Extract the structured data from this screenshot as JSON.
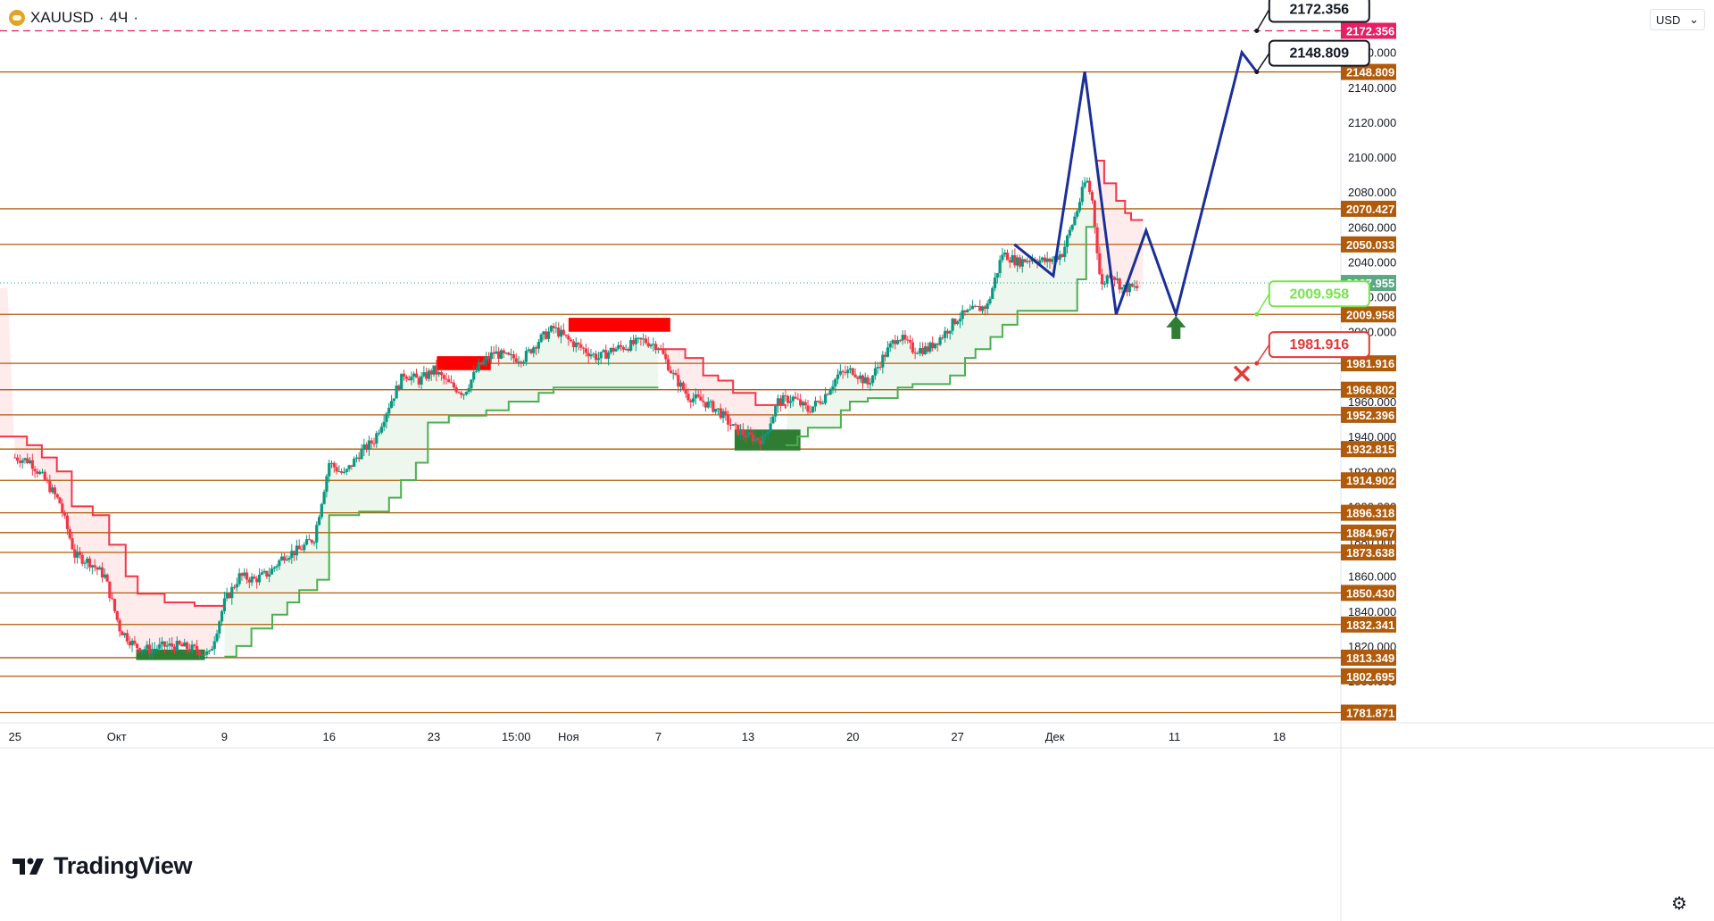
{
  "header": {
    "symbol": "XAUUSD",
    "separator": "·",
    "interval": "4Ч",
    "dot": "·"
  },
  "currency": {
    "label": "USD",
    "chevron": "⌄"
  },
  "brand": {
    "name": "TradingView"
  },
  "colors": {
    "level": "#b05a0a",
    "level_label_bg": "#b05a0a",
    "red_level": "#e91e63",
    "candle_up": "#089981",
    "candle_dn": "#f23645",
    "st_up": "#4caf50",
    "st_dn": "#f23645",
    "projection": "#1a2f9a",
    "support_box": "#2e7d32",
    "resist_box": "#ff0000"
  },
  "chart_data": {
    "type": "candlestick",
    "symbol": "XAUUSD",
    "timeframe": "4H",
    "ylim": [
      1776,
      2190
    ],
    "x_range_days": [
      -1.0,
      88.5
    ],
    "y_ticks": [
      "1800.000",
      "1820.000",
      "1840.000",
      "1860.000",
      "1880.000",
      "1900.000",
      "1920.000",
      "1940.000",
      "1960.000",
      "1980.000",
      "2000.000",
      "2020.000",
      "2040.000",
      "2060.000",
      "2080.000",
      "2100.000",
      "2120.000",
      "2140.000",
      "2160.000",
      "2180.000"
    ],
    "x_ticks": [
      {
        "label": "25",
        "day": 0
      },
      {
        "label": "Окт",
        "day": 6.8
      },
      {
        "label": "9",
        "day": 14
      },
      {
        "label": "16",
        "day": 21
      },
      {
        "label": "23",
        "day": 28
      },
      {
        "label": "15:00",
        "day": 33.5
      },
      {
        "label": "Ноя",
        "day": 37
      },
      {
        "label": "7",
        "day": 43
      },
      {
        "label": "13",
        "day": 49
      },
      {
        "label": "20",
        "day": 56
      },
      {
        "label": "27",
        "day": 63
      },
      {
        "label": "Дек",
        "day": 69.5
      },
      {
        "label": "11",
        "day": 77.5
      },
      {
        "label": "18",
        "day": 84.5
      }
    ],
    "levels": [
      "2172.356",
      "2148.809",
      "2070.427",
      "2050.033",
      "2027.955",
      "2009.958",
      "1981.916",
      "1966.802",
      "1952.396",
      "1932.815",
      "1914.902",
      "1896.318",
      "1884.967",
      "1873.638",
      "1850.430",
      "1832.341",
      "1813.349",
      "1802.695",
      "1781.871"
    ],
    "last_price": "2027.955",
    "close_path": [
      [
        0,
        1928
      ],
      [
        1,
        1926
      ],
      [
        2,
        1915
      ],
      [
        3,
        1902
      ],
      [
        4,
        1872
      ],
      [
        5,
        1868
      ],
      [
        6,
        1860
      ],
      [
        7,
        1830
      ],
      [
        8,
        1820
      ],
      [
        9,
        1818
      ],
      [
        10,
        1820
      ],
      [
        11,
        1820
      ],
      [
        12,
        1818
      ],
      [
        13,
        1815
      ],
      [
        14,
        1845
      ],
      [
        15,
        1860
      ],
      [
        16,
        1858
      ],
      [
        17,
        1862
      ],
      [
        18,
        1872
      ],
      [
        19,
        1875
      ],
      [
        20,
        1882
      ],
      [
        21,
        1925
      ],
      [
        22,
        1918
      ],
      [
        23,
        1930
      ],
      [
        24,
        1938
      ],
      [
        25,
        1958
      ],
      [
        26,
        1976
      ],
      [
        27,
        1972
      ],
      [
        28,
        1978
      ],
      [
        29,
        1970
      ],
      [
        30,
        1965
      ],
      [
        31,
        1980
      ],
      [
        32,
        1988
      ],
      [
        33,
        1985
      ],
      [
        34,
        1985
      ],
      [
        35,
        1995
      ],
      [
        36,
        2002
      ],
      [
        37,
        1995
      ],
      [
        38,
        1990
      ],
      [
        39,
        1985
      ],
      [
        40,
        1990
      ],
      [
        41,
        1992
      ],
      [
        42,
        1995
      ],
      [
        43,
        1992
      ],
      [
        44,
        1975
      ],
      [
        45,
        1963
      ],
      [
        46,
        1960
      ],
      [
        47,
        1955
      ],
      [
        48,
        1945
      ],
      [
        49,
        1940
      ],
      [
        50,
        1938
      ],
      [
        51,
        1960
      ],
      [
        52,
        1962
      ],
      [
        53,
        1955
      ],
      [
        54,
        1962
      ],
      [
        55,
        1975
      ],
      [
        56,
        1978
      ],
      [
        57,
        1970
      ],
      [
        58,
        1985
      ],
      [
        59,
        1998
      ],
      [
        60,
        1990
      ],
      [
        61,
        1990
      ],
      [
        62,
        1998
      ],
      [
        63,
        2008
      ],
      [
        64,
        2012
      ],
      [
        65,
        2015
      ],
      [
        66,
        2045
      ],
      [
        67,
        2040
      ],
      [
        68,
        2042
      ],
      [
        69,
        2040
      ],
      [
        70,
        2045
      ],
      [
        71,
        2070
      ],
      [
        71.6,
        2088
      ],
      [
        72.0,
        2075
      ],
      [
        72.6,
        2025
      ],
      [
        73.2,
        2035
      ],
      [
        74.0,
        2025
      ],
      [
        75.0,
        2025
      ]
    ],
    "supertrend": [
      {
        "trend": "down",
        "points": [
          [
            -1,
            1940
          ],
          [
            0.8,
            1940
          ],
          [
            0.8,
            1935
          ],
          [
            1.8,
            1935
          ],
          [
            1.8,
            1928
          ],
          [
            2.8,
            1928
          ],
          [
            2.8,
            1920
          ],
          [
            3.8,
            1920
          ],
          [
            3.8,
            1900
          ],
          [
            5.2,
            1900
          ],
          [
            5.2,
            1895
          ],
          [
            6.3,
            1895
          ],
          [
            6.3,
            1878
          ],
          [
            7.4,
            1878
          ],
          [
            7.4,
            1860
          ],
          [
            8.2,
            1860
          ],
          [
            8.2,
            1850
          ],
          [
            10,
            1850
          ],
          [
            10,
            1845
          ],
          [
            12,
            1845
          ],
          [
            12,
            1843
          ],
          [
            14,
            1843
          ]
        ]
      },
      {
        "trend": "up",
        "points": [
          [
            14,
            1814
          ],
          [
            14.8,
            1814
          ],
          [
            14.8,
            1820
          ],
          [
            15.8,
            1820
          ],
          [
            15.8,
            1830
          ],
          [
            17.2,
            1830
          ],
          [
            17.2,
            1838
          ],
          [
            18.2,
            1838
          ],
          [
            18.2,
            1845
          ],
          [
            19,
            1845
          ],
          [
            19,
            1852
          ],
          [
            20.2,
            1852
          ],
          [
            20.2,
            1858
          ],
          [
            21,
            1858
          ],
          [
            21,
            1895
          ],
          [
            23,
            1895
          ],
          [
            23,
            1897
          ],
          [
            25,
            1897
          ],
          [
            25,
            1905
          ],
          [
            25.8,
            1905
          ],
          [
            25.8,
            1915
          ],
          [
            26.8,
            1915
          ],
          [
            26.8,
            1925
          ],
          [
            27.6,
            1925
          ],
          [
            27.6,
            1948
          ],
          [
            29,
            1948
          ],
          [
            29,
            1952
          ],
          [
            31.5,
            1952
          ],
          [
            31.5,
            1955
          ],
          [
            33,
            1955
          ],
          [
            33,
            1960
          ],
          [
            35,
            1960
          ],
          [
            35,
            1965
          ],
          [
            36,
            1965
          ],
          [
            36,
            1968
          ],
          [
            43,
            1968
          ]
        ]
      },
      {
        "trend": "down",
        "points": [
          [
            43,
            1990
          ],
          [
            44.8,
            1990
          ],
          [
            44.8,
            1985
          ],
          [
            46,
            1985
          ],
          [
            46,
            1975
          ],
          [
            47,
            1975
          ],
          [
            47,
            1972
          ],
          [
            48,
            1972
          ],
          [
            48,
            1965
          ],
          [
            49.5,
            1965
          ],
          [
            49.5,
            1958
          ],
          [
            51.5,
            1958
          ],
          [
            51.5,
            1956
          ]
        ]
      },
      {
        "trend": "up",
        "points": [
          [
            51.5,
            1935
          ],
          [
            52.3,
            1935
          ],
          [
            52.3,
            1940
          ],
          [
            53,
            1940
          ],
          [
            53,
            1945
          ],
          [
            55.2,
            1945
          ],
          [
            55.2,
            1955
          ],
          [
            55.8,
            1955
          ],
          [
            55.8,
            1960
          ],
          [
            57,
            1960
          ],
          [
            57,
            1962
          ],
          [
            59,
            1962
          ],
          [
            59,
            1968
          ],
          [
            60,
            1968
          ],
          [
            60,
            1970
          ],
          [
            62.5,
            1970
          ],
          [
            62.5,
            1975
          ],
          [
            63.5,
            1975
          ],
          [
            63.5,
            1985
          ],
          [
            64.2,
            1985
          ],
          [
            64.2,
            1990
          ],
          [
            65.2,
            1990
          ],
          [
            65.2,
            1997
          ],
          [
            66,
            1997
          ],
          [
            66,
            2004
          ],
          [
            67,
            2004
          ],
          [
            67,
            2012
          ],
          [
            71,
            2012
          ],
          [
            71,
            2030
          ],
          [
            71.6,
            2030
          ],
          [
            71.6,
            2060
          ],
          [
            72.2,
            2060
          ]
        ]
      },
      {
        "trend": "down",
        "points": [
          [
            72.2,
            2098
          ],
          [
            72.8,
            2098
          ],
          [
            72.8,
            2085
          ],
          [
            73.6,
            2085
          ],
          [
            73.6,
            2075
          ],
          [
            74.2,
            2075
          ],
          [
            74.2,
            2068
          ],
          [
            74.6,
            2068
          ],
          [
            74.6,
            2064
          ],
          [
            75.4,
            2064
          ]
        ]
      }
    ],
    "zones": [
      {
        "kind": "resistance",
        "day": [
          28.2,
          31.8
        ],
        "price": [
          1978,
          1986
        ]
      },
      {
        "kind": "resistance",
        "day": [
          37.0,
          43.8
        ],
        "price": [
          2000,
          2008
        ]
      },
      {
        "kind": "support",
        "day": [
          8.1,
          12.7
        ],
        "price": [
          1812,
          1818
        ]
      },
      {
        "kind": "support",
        "day": [
          48.1,
          52.5
        ],
        "price": [
          1932,
          1944
        ]
      }
    ],
    "projection": [
      [
        66.8,
        2050
      ],
      [
        69.4,
        2032
      ],
      [
        71.5,
        2149
      ],
      [
        73.6,
        2010
      ],
      [
        75.6,
        2058
      ],
      [
        77.6,
        2010
      ],
      [
        82.0,
        2160
      ],
      [
        83.0,
        2148.809
      ]
    ],
    "callouts": [
      {
        "label": "2172.356",
        "price": 2172.356,
        "color": "black"
      },
      {
        "label": "2148.809",
        "price": 2148.809,
        "color": "black"
      },
      {
        "label": "2009.958",
        "price": 2009.958,
        "color": "green"
      },
      {
        "label": "1981.916",
        "price": 1981.916,
        "color": "red"
      }
    ],
    "markers": [
      {
        "kind": "buy-arrow",
        "day": 77.6,
        "price": 2003
      },
      {
        "kind": "stop-cross",
        "day": 82.0,
        "price": 1976
      }
    ]
  }
}
